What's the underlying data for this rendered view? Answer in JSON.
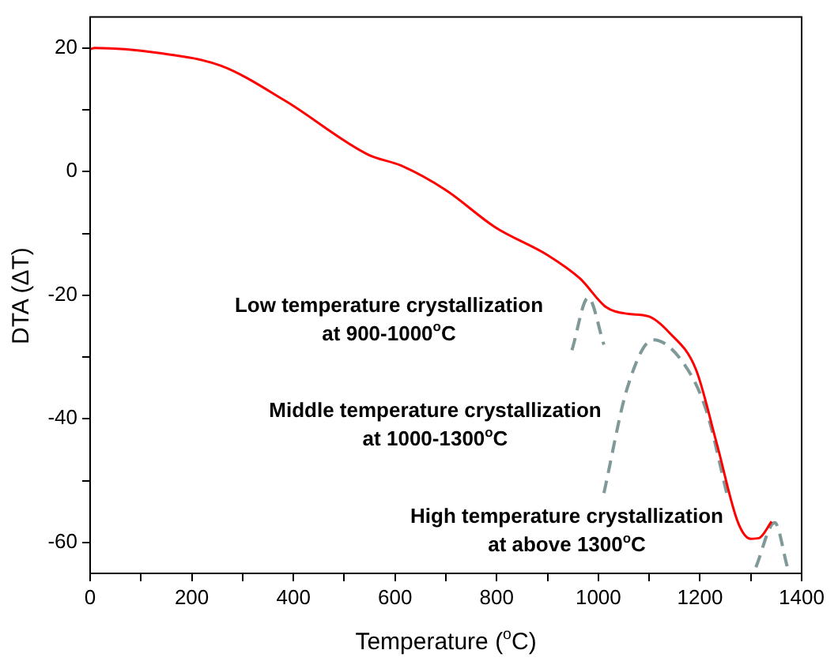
{
  "chart_data": {
    "type": "line",
    "xlabel": "Temperature ($^{o}$C)",
    "ylabel": "DTA (ΔT)",
    "xlim": [
      0,
      1400
    ],
    "ylim": [
      -65,
      25
    ],
    "xticks": [
      0,
      {
        "value": 100,
        "label": null
      },
      200,
      {
        "value": 300,
        "label": null
      },
      400,
      {
        "value": 500,
        "label": null
      },
      600,
      {
        "value": 700,
        "label": null
      },
      800,
      {
        "value": 900,
        "label": null
      },
      1000,
      {
        "value": 1100,
        "label": null
      },
      1200,
      {
        "value": 1300,
        "label": null
      },
      1400
    ],
    "yticks": [
      -60,
      {
        "value": -50,
        "label": null
      },
      -40,
      {
        "value": -30,
        "label": null
      },
      -20,
      {
        "value": -10,
        "label": null
      },
      0,
      {
        "value": 10,
        "label": null
      },
      20
    ],
    "grid": false,
    "legend": false,
    "marker": "none",
    "series": [
      {
        "color": "#ff0000",
        "line_style": "solid",
        "x": [
          0,
          9,
          134,
          258,
          383,
          548,
          611,
          700,
          797,
          900,
          964,
          1015,
          1057,
          1098,
          1139,
          1192,
          1233,
          1275,
          1300,
          1316,
          1341
        ],
        "values": [
          19.8,
          20,
          19.2,
          17.1,
          11.5,
          2.7,
          1,
          -3,
          -9,
          -13.5,
          -17.3,
          -21.9,
          -23,
          -23.4,
          -26,
          -32,
          -44,
          -56.8,
          -59.4,
          -59.3,
          -56.6
        ]
      },
      {
        "color": "#7f9999",
        "line_style": "dashed",
        "x": [
          948,
          980,
          1011
        ],
        "values": [
          -28.9,
          -20.4,
          -28
        ]
      },
      {
        "color": "#7f9999",
        "line_style": "dashed",
        "x": [
          1011,
          1057,
          1108,
          1171,
          1213,
          1254
        ],
        "values": [
          -52,
          -35,
          -27.2,
          -31.4,
          -38.8,
          -52.5
        ]
      },
      {
        "color": "#7f9999",
        "line_style": "dashed",
        "x": [
          1310,
          1347,
          1372
        ],
        "values": [
          -64,
          -56.8,
          -64
        ]
      }
    ],
    "annotations": [
      "Low temperature crystallization\nat 900-1000$^{o}$C",
      "Middle temperature crystallization\nat 1000-1300$^{o}$C",
      "High temperature crystallization\nat above 1300$^{o}$C"
    ]
  }
}
